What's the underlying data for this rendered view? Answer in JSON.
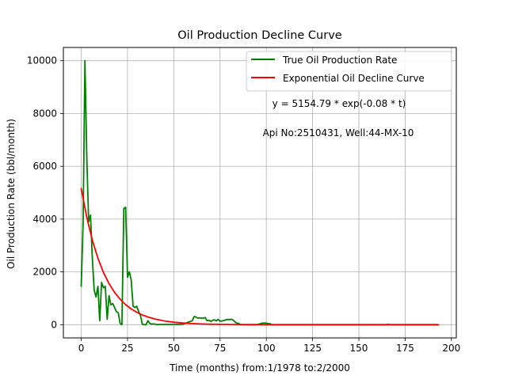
{
  "chart_data": {
    "type": "line",
    "title": "Oil Production Decline Curve",
    "xlabel": "Time (months) from:1/1978 to:2/2000",
    "ylabel": "Oil Production Rate (bbl/month)",
    "xlim": [
      -9.65,
      202.65
    ],
    "ylim": [
      -500,
      10500
    ],
    "xticks": [
      0,
      25,
      50,
      75,
      100,
      125,
      150,
      175,
      200
    ],
    "yticks": [
      0,
      2000,
      4000,
      6000,
      8000,
      10000
    ],
    "xtick_labels": [
      "0",
      "25",
      "50",
      "75",
      "100",
      "125",
      "150",
      "175",
      "200"
    ],
    "ytick_labels": [
      "0",
      "2000",
      "4000",
      "6000",
      "8000",
      "10000"
    ],
    "grid": true,
    "legend_position": "top-right",
    "annotations": [
      "y = 5154.79 * exp(-0.08 * t)",
      "Api No:2510431, Well:44-MX-10"
    ],
    "series": [
      {
        "name": "True Oil Production Rate",
        "color": "#008000",
        "x": [
          0,
          1,
          2,
          3,
          4,
          5,
          6,
          7,
          8,
          9,
          10,
          11,
          12,
          13,
          14,
          15,
          16,
          17,
          18,
          19,
          20,
          21,
          22,
          23,
          24,
          25,
          26,
          27,
          28,
          29,
          30,
          31,
          32,
          33,
          34,
          35,
          36,
          37,
          38,
          39,
          40,
          41,
          42,
          45,
          50,
          55,
          58,
          60,
          61,
          62,
          63,
          64,
          65,
          66,
          67,
          68,
          69,
          70,
          71,
          72,
          73,
          74,
          75,
          76,
          77,
          78,
          79,
          80,
          81,
          82,
          83,
          84,
          85,
          86,
          87,
          88,
          89,
          90,
          95,
          98,
          99,
          100,
          101,
          102,
          103,
          104,
          105,
          110,
          120,
          130,
          140,
          150,
          160,
          165,
          166,
          167,
          170,
          180,
          190,
          193
        ],
        "y": [
          1450,
          3800,
          10000,
          6300,
          3900,
          4150,
          2500,
          1300,
          1050,
          1450,
          150,
          1600,
          1400,
          1450,
          200,
          1100,
          750,
          800,
          650,
          500,
          450,
          50,
          0,
          4400,
          4450,
          1800,
          2000,
          1700,
          700,
          650,
          700,
          500,
          350,
          20,
          0,
          0,
          150,
          50,
          20,
          30,
          20,
          0,
          10,
          10,
          10,
          20,
          100,
          150,
          310,
          290,
          250,
          260,
          250,
          250,
          270,
          150,
          170,
          120,
          170,
          180,
          140,
          200,
          130,
          140,
          160,
          180,
          200,
          190,
          210,
          180,
          110,
          60,
          50,
          10,
          0,
          0,
          0,
          0,
          0,
          60,
          60,
          60,
          40,
          40,
          0,
          0,
          0,
          0,
          0,
          0,
          0,
          0,
          0,
          0,
          20,
          0,
          0,
          0,
          0,
          0
        ]
      },
      {
        "name": "Exponential Oil Decline Curve",
        "color": "#ff0000",
        "equation": "y = 5154.79 * exp(-0.08 * t)",
        "x": [
          0,
          3,
          6,
          9,
          12,
          15,
          18,
          21,
          24,
          27,
          30,
          33,
          36,
          40,
          45,
          50,
          55,
          60,
          65,
          70,
          75,
          80,
          85,
          90,
          100,
          110,
          120,
          130,
          140,
          150,
          160,
          170,
          180,
          193
        ],
        "y": [
          5154.79,
          4057.7,
          3194.2,
          2514.4,
          1979.2,
          1558.0,
          1226.4,
          965.4,
          759.9,
          598.2,
          470.9,
          370.7,
          291.8,
          210.5,
          141.1,
          94.6,
          63.4,
          42.5,
          28.5,
          19.1,
          12.8,
          8.6,
          5.8,
          3.9,
          1.7,
          0.8,
          0.3,
          0.2,
          0.07,
          0.03,
          0.01,
          0.01,
          0.0,
          0.0
        ]
      }
    ]
  }
}
